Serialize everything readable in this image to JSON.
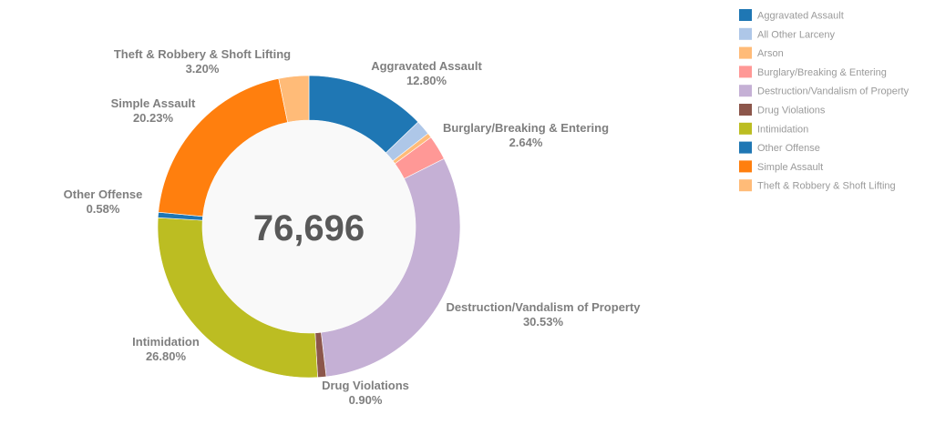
{
  "chart_data": {
    "type": "pie",
    "donut": true,
    "total_label": "76,696",
    "legend_placement": "top-right",
    "slices": [
      {
        "name": "Aggravated Assault",
        "value": 12.8,
        "label": "12.80%",
        "color": "#1f77b4",
        "show_label": true
      },
      {
        "name": "All Other Larceny",
        "value": 1.6,
        "label": "",
        "color": "#aec7e8",
        "show_label": false
      },
      {
        "name": "Arson",
        "value": 0.5,
        "label": "",
        "color": "#ffbb78",
        "show_label": false
      },
      {
        "name": "Burglary/Breaking & Entering",
        "value": 2.64,
        "label": "2.64%",
        "color": "#ff9896",
        "show_label": true
      },
      {
        "name": "Destruction/Vandalism of Property",
        "value": 30.53,
        "label": "30.53%",
        "color": "#c5b0d5",
        "show_label": true
      },
      {
        "name": "Drug Violations",
        "value": 0.9,
        "label": "0.90%",
        "color": "#8c564b",
        "show_label": true
      },
      {
        "name": "Intimidation",
        "value": 26.8,
        "label": "26.80%",
        "color": "#bcbd22",
        "show_label": true
      },
      {
        "name": "Other Offense",
        "value": 0.58,
        "label": "0.58%",
        "color": "#1f77b4",
        "show_label": true
      },
      {
        "name": "Simple Assault",
        "value": 20.23,
        "label": "20.23%",
        "color": "#ff7f0e",
        "show_label": true
      },
      {
        "name": "Theft & Robbery & Shoft Lifting",
        "value": 3.2,
        "label": "3.20%",
        "color": "#ffbb78",
        "show_label": true
      }
    ]
  }
}
